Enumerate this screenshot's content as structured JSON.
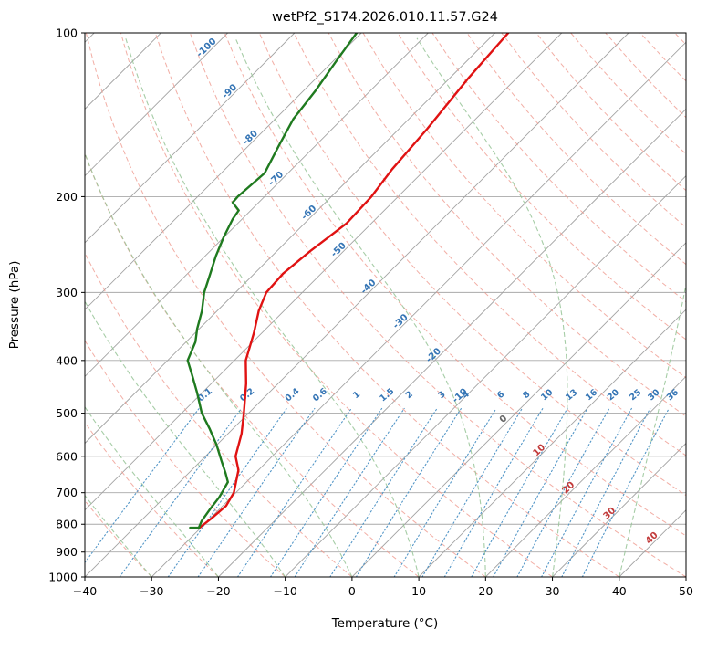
{
  "chart_data": {
    "type": "skewt_log_p",
    "title": "wetPf2_S174.2026.010.11.57.G24",
    "xlabel": "Temperature (°C)",
    "ylabel": "Pressure (hPa)",
    "xlim": [
      -40,
      50
    ],
    "pressure_lim": [
      100,
      1000
    ],
    "temp_ticks": [
      -40,
      -30,
      -20,
      -10,
      0,
      10,
      20,
      30,
      40,
      50
    ],
    "pressure_ticks": [
      100,
      200,
      300,
      400,
      500,
      600,
      700,
      800,
      900,
      1000
    ],
    "grid": true,
    "skew_degrees": 45,
    "isotherms": {
      "start": -150,
      "end": 50,
      "step": 10,
      "color": "#a3a3a3"
    },
    "isotherm_labels": [
      {
        "t": -100,
        "p": 108
      },
      {
        "t": -90,
        "p": 130
      },
      {
        "t": -80,
        "p": 158
      },
      {
        "t": -70,
        "p": 188
      },
      {
        "t": -60,
        "p": 217
      },
      {
        "t": -50,
        "p": 254
      },
      {
        "t": -40,
        "p": 297
      },
      {
        "t": -30,
        "p": 344
      },
      {
        "t": -20,
        "p": 397
      },
      {
        "t": -10,
        "p": 471
      },
      {
        "t": 0,
        "p": 520
      },
      {
        "t": 10,
        "p": 593
      },
      {
        "t": 20,
        "p": 695
      },
      {
        "t": 30,
        "p": 775
      },
      {
        "t": 40,
        "p": 860
      }
    ],
    "isotherm_label_colors": {
      "negative": "#3575b5",
      "zero": "#666666",
      "positive": "#c23b3b"
    },
    "dry_adiabats": {
      "theta_start": -40,
      "theta_end": 200,
      "step": 10,
      "color": "#ef9a8f"
    },
    "moist_adiabats": {
      "t0_start": -40,
      "t0_end": 50,
      "step": 10,
      "color": "#96c496"
    },
    "mixing_ratio_lines": {
      "values": [
        0.1,
        0.2,
        0.4,
        0.6,
        1,
        1.5,
        2,
        3,
        4,
        6,
        8,
        10,
        13,
        16,
        20,
        25,
        30,
        36
      ],
      "color": "#4a90c4",
      "label_color": "#3575b5",
      "top_pressure": 490,
      "label_pressure": 468
    },
    "series": [
      {
        "name": "temperature",
        "color": "#e01212",
        "points": [
          [
            100,
            -58.0
          ],
          [
            121,
            -57.2
          ],
          [
            150,
            -55.8
          ],
          [
            178,
            -55.0
          ],
          [
            200,
            -54.0
          ],
          [
            224,
            -53.7
          ],
          [
            252,
            -55.0
          ],
          [
            277,
            -55.7
          ],
          [
            300,
            -55.4
          ],
          [
            324,
            -53.8
          ],
          [
            356,
            -51.2
          ],
          [
            400,
            -48.3
          ],
          [
            441,
            -44.8
          ],
          [
            500,
            -40.7
          ],
          [
            545,
            -38.0
          ],
          [
            600,
            -35.5
          ],
          [
            636,
            -33.0
          ],
          [
            700,
            -30.3
          ],
          [
            740,
            -29.5
          ],
          [
            780,
            -29.8
          ],
          [
            812,
            -30.2
          ]
        ]
      },
      {
        "name": "dewpoint",
        "color": "#1f7a1f",
        "points": [
          [
            100,
            -80.7
          ],
          [
            112,
            -79.6
          ],
          [
            128,
            -78.2
          ],
          [
            144,
            -77.3
          ],
          [
            161,
            -75.5
          ],
          [
            181,
            -73.5
          ],
          [
            200,
            -74.0
          ],
          [
            205,
            -73.9
          ],
          [
            212,
            -71.8
          ],
          [
            220,
            -71.4
          ],
          [
            238,
            -70.0
          ],
          [
            257,
            -68.4
          ],
          [
            277,
            -66.6
          ],
          [
            300,
            -64.7
          ],
          [
            324,
            -62.3
          ],
          [
            350,
            -60.3
          ],
          [
            370,
            -58.6
          ],
          [
            400,
            -57.0
          ],
          [
            425,
            -54.2
          ],
          [
            458,
            -50.8
          ],
          [
            500,
            -47.0
          ],
          [
            535,
            -43.4
          ],
          [
            571,
            -40.1
          ],
          [
            612,
            -36.9
          ],
          [
            644,
            -34.5
          ],
          [
            669,
            -32.8
          ],
          [
            700,
            -32.1
          ],
          [
            714,
            -31.8
          ],
          [
            751,
            -31.4
          ],
          [
            789,
            -30.9
          ],
          [
            812,
            -30.3
          ],
          [
            812,
            -31.6
          ]
        ]
      }
    ]
  }
}
